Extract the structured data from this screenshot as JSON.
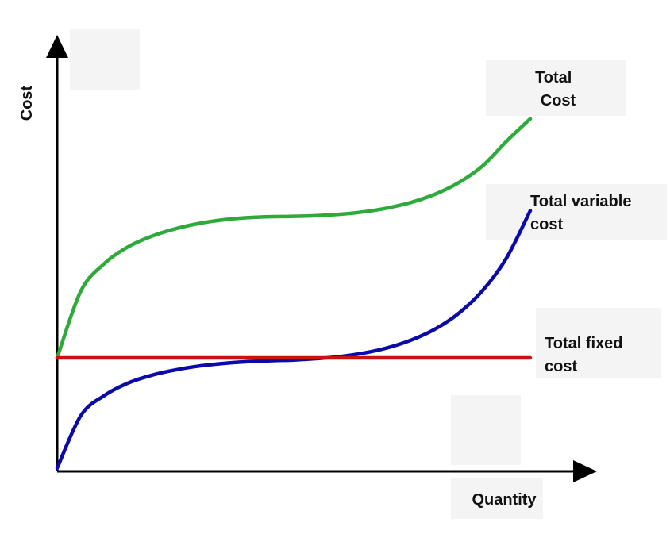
{
  "chart_data": {
    "type": "line",
    "xlabel": "Quantity",
    "ylabel": "Cost",
    "xlim": [
      0,
      1
    ],
    "ylim": [
      0,
      1
    ],
    "grid": false,
    "ticks": false,
    "series": [
      {
        "name": "Total Cost",
        "label_lines": [
          "Total",
          "Cost"
        ],
        "color": "#2eaa3a",
        "x": [
          0,
          0.05,
          0.1,
          0.15,
          0.2,
          0.25,
          0.3,
          0.35,
          0.4,
          0.45,
          0.5,
          0.55,
          0.6,
          0.65,
          0.7,
          0.75,
          0.8,
          0.85,
          0.9,
          0.95,
          1.0
        ],
        "y": [
          0.311,
          0.499,
          0.577,
          0.624,
          0.654,
          0.675,
          0.69,
          0.7,
          0.706,
          0.709,
          0.71,
          0.712,
          0.716,
          0.723,
          0.734,
          0.75,
          0.773,
          0.806,
          0.853,
          0.922,
          0.985
        ]
      },
      {
        "name": "Total variable cost",
        "label_lines": [
          "Total variable",
          "cost"
        ],
        "color": "#0a0aaa",
        "x": [
          0,
          0.05,
          0.1,
          0.15,
          0.2,
          0.25,
          0.3,
          0.35,
          0.4,
          0.45,
          0.5,
          0.55,
          0.6,
          0.65,
          0.7,
          0.75,
          0.8,
          0.85,
          0.9,
          0.95,
          1.0
        ],
        "y": [
          0.0,
          0.148,
          0.205,
          0.24,
          0.262,
          0.277,
          0.288,
          0.295,
          0.3,
          0.303,
          0.305,
          0.309,
          0.315,
          0.325,
          0.34,
          0.362,
          0.393,
          0.438,
          0.502,
          0.593,
          0.726
        ]
      },
      {
        "name": "Total fixed cost",
        "label_lines": [
          "Total fixed",
          "cost"
        ],
        "color": "#cc1111",
        "x": [
          0,
          1.0
        ],
        "y": [
          0.311,
          0.311
        ]
      }
    ]
  }
}
